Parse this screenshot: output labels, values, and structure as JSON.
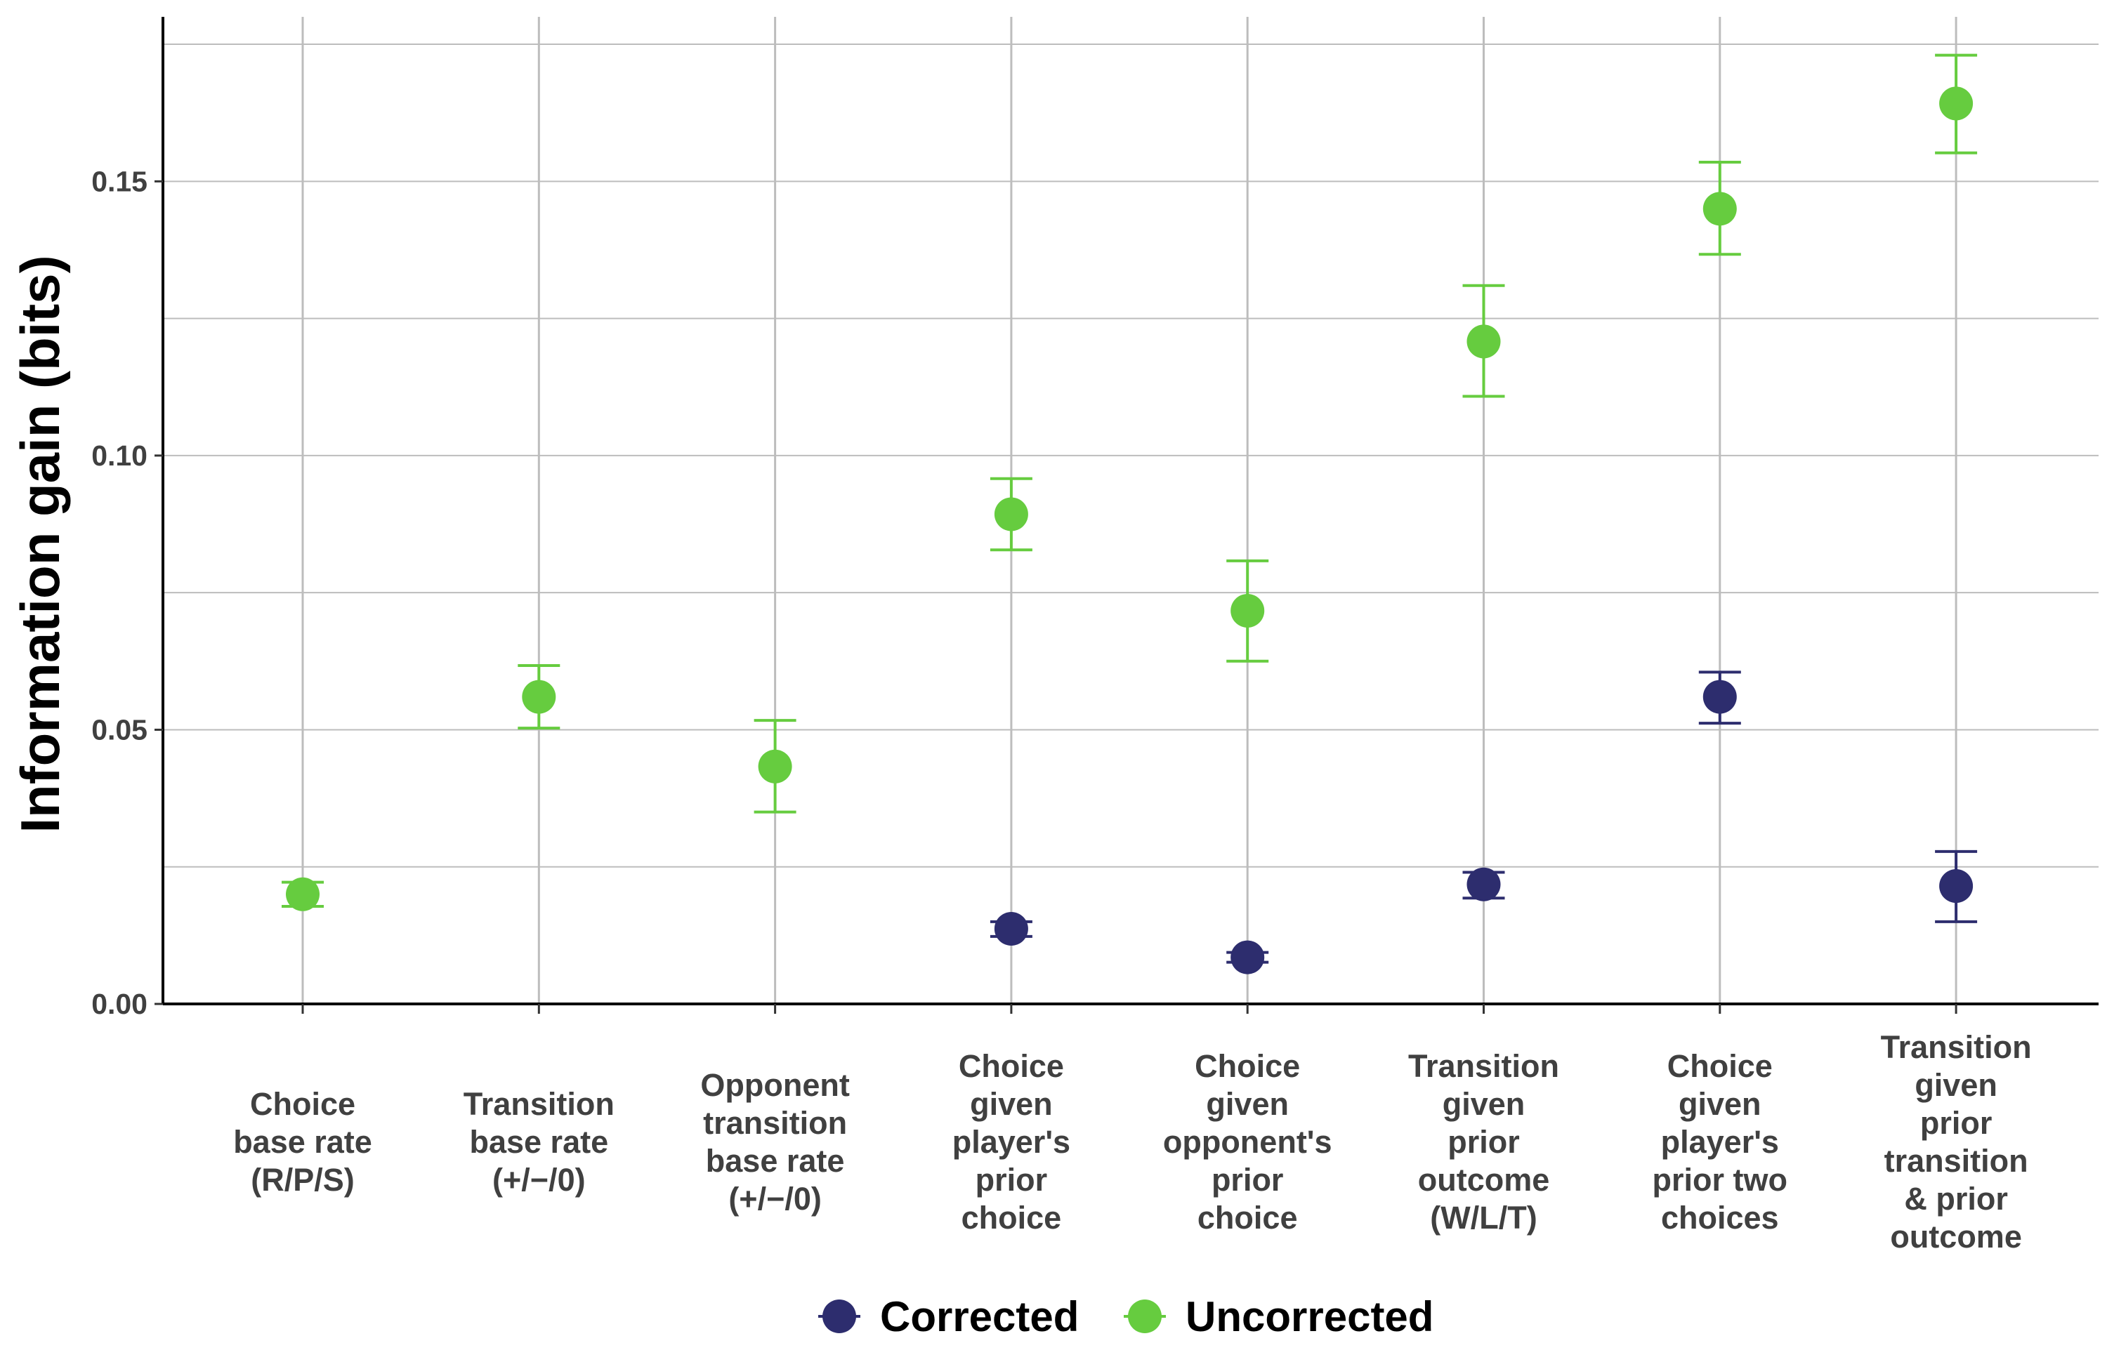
{
  "chart_data": {
    "type": "scatter",
    "ylabel": "Information gain (bits)",
    "ylim": [
      0,
      0.18
    ],
    "yticks": [
      0.0,
      0.05,
      0.1,
      0.15
    ],
    "ytick_labels": [
      "0.00",
      "0.05",
      "0.10",
      "0.15"
    ],
    "grid": true,
    "legend_position": "bottom",
    "categories": [
      [
        "Choice",
        "base rate",
        "(R/P/S)"
      ],
      [
        "Transition",
        "base rate",
        "(+/−/0)"
      ],
      [
        "Opponent",
        "transition",
        "base rate",
        "(+/−/0)"
      ],
      [
        "Choice",
        "given",
        "player's",
        "prior",
        "choice"
      ],
      [
        "Choice",
        "given",
        "opponent's",
        "prior",
        "choice"
      ],
      [
        "Transition",
        "given",
        "prior",
        "outcome",
        "(W/L/T)"
      ],
      [
        "Choice",
        "given",
        "player's",
        "prior two",
        "choices"
      ],
      [
        "Transition",
        "given",
        "prior",
        "transition",
        "& prior",
        "outcome"
      ]
    ],
    "series": [
      {
        "name": "Corrected",
        "color": "#2d2d6e",
        "values": [
          null,
          null,
          null,
          0.0137,
          0.0085,
          0.0218,
          0.056,
          0.0215
        ],
        "lower": [
          null,
          null,
          null,
          0.0123,
          0.0076,
          0.0193,
          0.0512,
          0.015
        ],
        "upper": [
          null,
          null,
          null,
          0.015,
          0.0094,
          0.024,
          0.0605,
          0.0278
        ]
      },
      {
        "name": "Uncorrected",
        "color": "#66cc3f",
        "values": [
          0.02,
          0.056,
          0.0433,
          0.0893,
          0.0717,
          0.1208,
          0.145,
          0.1642
        ],
        "lower": [
          0.0178,
          0.0503,
          0.035,
          0.0828,
          0.0625,
          0.1108,
          0.1367,
          0.1552
        ],
        "upper": [
          0.0222,
          0.0617,
          0.0517,
          0.0958,
          0.0808,
          0.131,
          0.1535,
          0.173
        ]
      }
    ]
  }
}
